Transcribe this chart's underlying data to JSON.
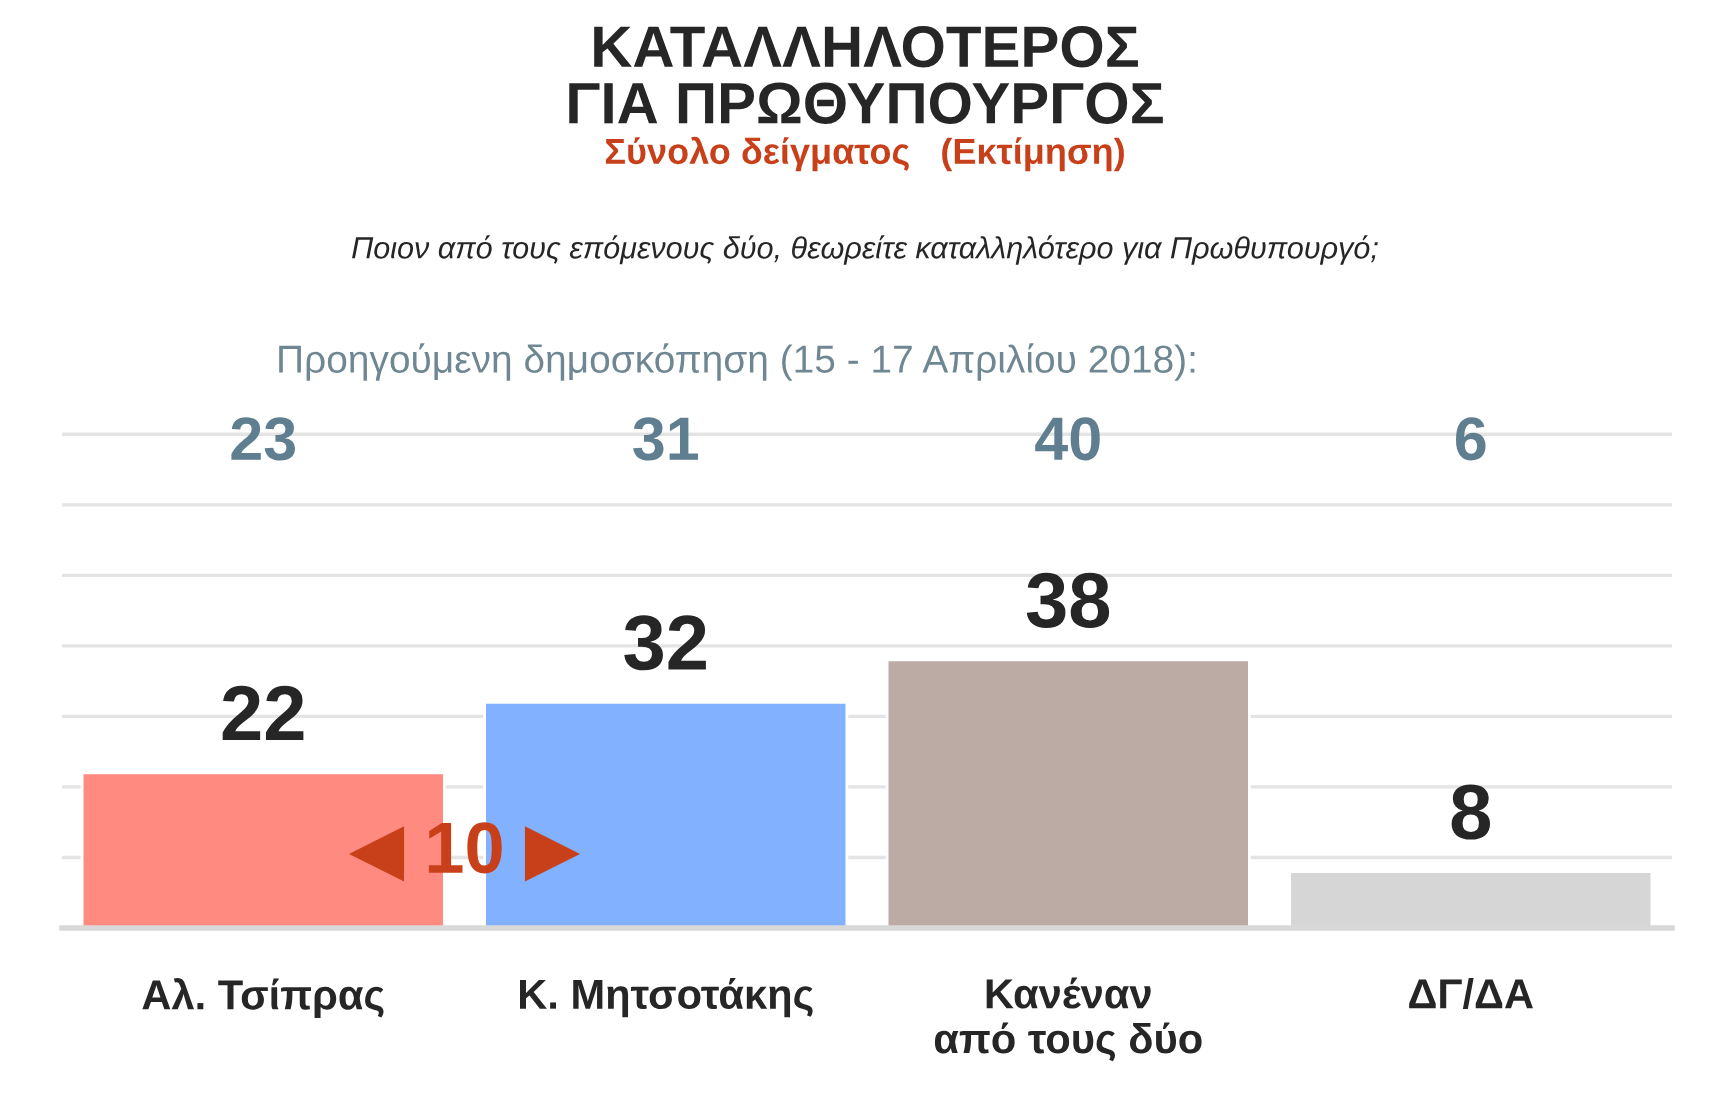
{
  "chart_data": {
    "type": "bar",
    "title": "ΚΑΤΑΛΛΗΛΟΤΕΡΟΣ\nΓΙΑ ΠΡΩΘΥΠΟΥΡΓΟΣ",
    "subtitle": "Σύνολο δείγματος   (Εκτίμηση)",
    "categories": [
      "Αλ. Τσίπρας",
      "Κ. Μητσοτάκης",
      "Κανέναν\nαπό τους δύο",
      "ΔΓ/ΔΑ"
    ],
    "values": [
      22,
      32,
      38,
      8
    ],
    "colors": [
      "#ff8a80",
      "#82b1ff",
      "#bcaaa4",
      "#d6d6d6"
    ],
    "data_labels": true,
    "grid": "y",
    "tick_labels": "x",
    "annotations": [
      "Ποιον από τους επόμενους δύο, θεωρείτε καταλληλότερο για Πρωθυπουργό;",
      "Προηγούμενη δημοσκόπηση (15 - 17 Απριλίου 2018):",
      "23",
      "31",
      "40",
      "6",
      "◀ 10 ▶"
    ]
  }
}
